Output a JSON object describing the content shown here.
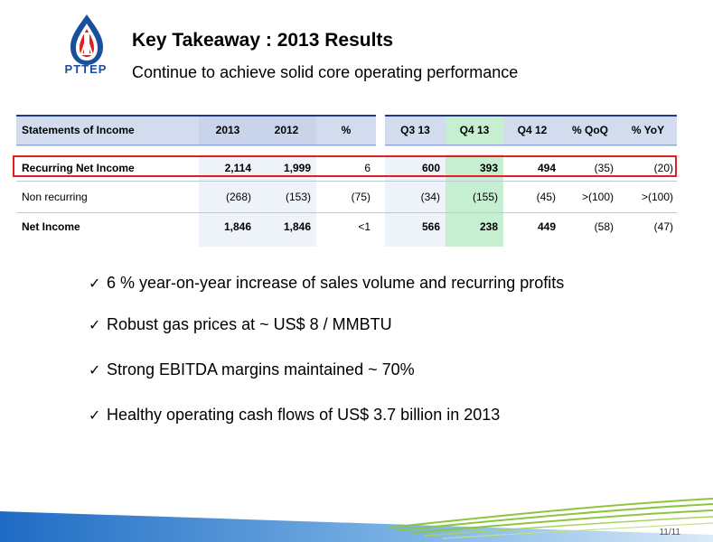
{
  "logo": {
    "text": "PTTEP"
  },
  "title": "Key Takeaway : 2013 Results",
  "subtitle": "Continue to achieve solid core operating performance",
  "table": {
    "headers": [
      "Statements of Income",
      "2013",
      "2012",
      "%",
      "Q3 13",
      "Q4 13",
      "Q4 12",
      "% QoQ",
      "% YoY"
    ],
    "rows": [
      {
        "label": "Recurring Net Income",
        "values": [
          "2,114",
          "1,999",
          "6",
          "600",
          "393",
          "494",
          "(35)",
          "(20)"
        ]
      },
      {
        "label": "Non recurring",
        "values": [
          "(268)",
          "(153)",
          "(75)",
          "(34)",
          "(155)",
          "(45)",
          ">(100)",
          ">(100)"
        ]
      },
      {
        "label": "Net Income",
        "values": [
          "1,846",
          "1,846",
          "<1",
          "566",
          "238",
          "449",
          "(58)",
          "(47)"
        ]
      }
    ]
  },
  "bullets": [
    "6 % year-on-year increase of sales volume and recurring profits",
    "Robust gas prices at ~ US$ 8 / MMBTU",
    "Strong  EBITDA  margins maintained ~ 70%",
    "Healthy operating cash flows of US$ 3.7 billion in 2013"
  ],
  "page_number": "11/11",
  "colors": {
    "header_fill": "#d2dcee",
    "highlight_green": "#c6efd2",
    "highlight_box": "#e02020",
    "brand_blue": "#1a4f9c",
    "brand_red": "#e02020"
  },
  "icons": {
    "logo": "pttep-logo-icon",
    "check": "checkmark-icon",
    "footer": "wave-graphic"
  }
}
